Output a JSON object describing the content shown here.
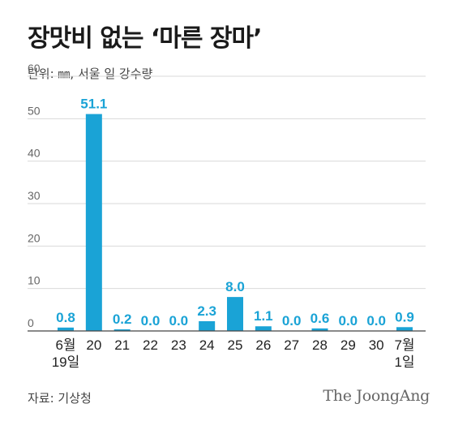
{
  "title": "장맛비 없는 ‘마른 장마’",
  "unit_label": "단위: ㎜, 서울 일 강수량",
  "source": "자료: 기상청",
  "logo_text": "The JoongAng",
  "colors": {
    "bar": "#1aa3d6",
    "grid": "#d9d9d9",
    "axis": "#444444"
  },
  "chart_data": {
    "type": "bar",
    "title": "장맛비 없는 ‘마른 장마’",
    "xlabel": "",
    "ylabel": "",
    "ylim": [
      0,
      60
    ],
    "yticks": [
      "0",
      "10",
      "20",
      "30",
      "40",
      "50",
      "60"
    ],
    "grid": true,
    "categories": [
      [
        "6월",
        "19일"
      ],
      [
        "20"
      ],
      [
        "21"
      ],
      [
        "22"
      ],
      [
        "23"
      ],
      [
        "24"
      ],
      [
        "25"
      ],
      [
        "26"
      ],
      [
        "27"
      ],
      [
        "28"
      ],
      [
        "29"
      ],
      [
        "30"
      ],
      [
        "7월",
        "1일"
      ]
    ],
    "values": [
      0.8,
      51.1,
      0.2,
      0.0,
      0.0,
      2.3,
      8.0,
      1.1,
      0.0,
      0.6,
      0.0,
      0.0,
      0.9
    ],
    "value_labels": [
      "0.8",
      "51.1",
      "0.2",
      "0.0",
      "0.0",
      "2.3",
      "8.0",
      "1.1",
      "0.0",
      "0.6",
      "0.0",
      "0.0",
      "0.9"
    ]
  }
}
